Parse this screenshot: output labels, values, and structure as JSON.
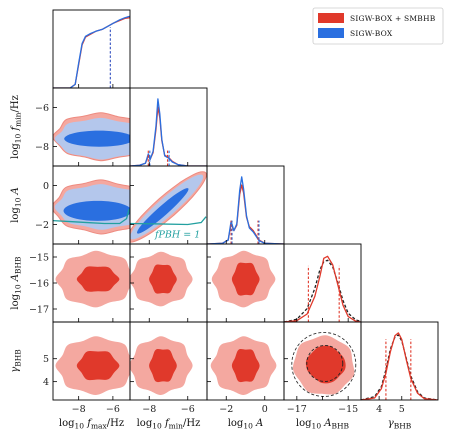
{
  "chart_data": {
    "type": "corner",
    "series": [
      {
        "name": "SIGW-BOX + SMBHB",
        "color": "#e0392b",
        "light": "#f4a8a0"
      },
      {
        "name": "SIGW-BOX",
        "color": "#2a6fe0",
        "light": "#b4c7ec"
      }
    ],
    "parameters": [
      {
        "key": "fmax",
        "xlabel": "log10 fmax/Hz",
        "ylabel": "",
        "range": [
          -9.5,
          -5
        ],
        "ticks": [
          -8,
          -6
        ]
      },
      {
        "key": "fmin",
        "xlabel": "log10 fmin/Hz",
        "ylabel": "log10 fmin/Hz",
        "range": [
          -9,
          -5
        ],
        "ticks": [
          -8,
          -6
        ]
      },
      {
        "key": "A",
        "xlabel": "log10 A",
        "ylabel": "log10 A",
        "range": [
          -3,
          1
        ],
        "ticks": [
          -2,
          0
        ]
      },
      {
        "key": "ABHB",
        "xlabel": "log10 ABHB",
        "ylabel": "log10 ABHB",
        "range": [
          -17.5,
          -14.5
        ],
        "ticks": [
          -17,
          -16,
          -15
        ]
      },
      {
        "key": "gBHB",
        "xlabel": "γBHB",
        "ylabel": "γBHB",
        "range": [
          3.2,
          6.6
        ],
        "ticks": [
          4,
          5
        ]
      }
    ],
    "tick_labels": {
      "fmax_x": [
        "−8",
        "−6"
      ],
      "fmin_x": [
        "−8",
        "−6"
      ],
      "A_x": [
        "−2",
        "0"
      ],
      "ABHB_x": [
        "−17",
        "−15"
      ],
      "gBHB_x": [
        "4",
        "5"
      ],
      "fmin_y": [
        "−6",
        "−8"
      ],
      "A_y": [
        "0",
        "−2"
      ],
      "ABHB_y": [
        "−15",
        "−16",
        "−17"
      ],
      "gBHB_y": [
        "5",
        "4"
      ]
    },
    "annotation": {
      "text": "fPBH = 1",
      "x": -6.5,
      "y": -2.2
    },
    "pbh_line": [
      [
        -9.5,
        -1.8
      ],
      [
        -8.5,
        -1.85
      ],
      [
        -7.5,
        -1.9
      ],
      [
        -6.5,
        -1.95
      ],
      [
        -5.6,
        -1.95
      ],
      [
        -5.2,
        -1.7
      ],
      [
        -5.05,
        -1.2
      ]
    ],
    "marginals": {
      "fmax": {
        "x": [
          -9.5,
          -8.5,
          -8.2,
          -8.0,
          -7.8,
          -7.6,
          -7.3,
          -7.0,
          -6.6,
          -6.3,
          -6.0,
          -5.6,
          -5.3,
          -5.0
        ],
        "blue": [
          0,
          0,
          0.05,
          0.35,
          0.62,
          0.72,
          0.76,
          0.79,
          0.82,
          0.86,
          0.9,
          0.95,
          0.98,
          1.0
        ],
        "red": [
          0,
          0,
          0.05,
          0.33,
          0.6,
          0.71,
          0.75,
          0.79,
          0.82,
          0.86,
          0.9,
          0.94,
          0.97,
          0.98
        ],
        "quantile": -6.15
      },
      "fmin": {
        "x": [
          -9.0,
          -8.5,
          -8.2,
          -8.05,
          -7.95,
          -7.8,
          -7.65,
          -7.55,
          -7.45,
          -7.35,
          -7.2,
          -7.0,
          -6.8,
          -6.5,
          -6.0,
          -5.0
        ],
        "blue": [
          0,
          0.01,
          0.04,
          0.18,
          0.1,
          0.22,
          0.6,
          1.0,
          0.78,
          0.4,
          0.15,
          0.12,
          0.06,
          0.02,
          0,
          0
        ],
        "red": [
          0,
          0.01,
          0.04,
          0.15,
          0.1,
          0.2,
          0.55,
          0.88,
          0.72,
          0.38,
          0.16,
          0.13,
          0.07,
          0.02,
          0,
          0
        ],
        "quantiles": [
          -8.05,
          -7.05
        ]
      },
      "A": {
        "x": [
          -3,
          -2.2,
          -1.9,
          -1.75,
          -1.6,
          -1.45,
          -1.3,
          -1.2,
          -1.1,
          -0.95,
          -0.8,
          -0.6,
          -0.3,
          0,
          1
        ],
        "blue": [
          0,
          0.01,
          0.06,
          0.34,
          0.2,
          0.3,
          0.8,
          1.0,
          0.82,
          0.42,
          0.24,
          0.18,
          0.05,
          0.01,
          0
        ],
        "red": [
          0,
          0.01,
          0.06,
          0.3,
          0.2,
          0.28,
          0.74,
          0.88,
          0.76,
          0.4,
          0.26,
          0.2,
          0.06,
          0.01,
          0
        ],
        "quantiles": [
          -1.75,
          -0.35
        ]
      },
      "ABHB": {
        "x": [
          -17.5,
          -17.0,
          -16.6,
          -16.3,
          -16.1,
          -15.95,
          -15.8,
          -15.6,
          -15.4,
          -15.2,
          -15.0,
          -14.7,
          -14.5
        ],
        "red": [
          0,
          0.02,
          0.12,
          0.38,
          0.68,
          0.95,
          0.98,
          0.85,
          0.55,
          0.25,
          0.08,
          0.01,
          0
        ],
        "prior": [
          0,
          0.04,
          0.2,
          0.5,
          0.78,
          0.9,
          0.92,
          0.82,
          0.58,
          0.32,
          0.13,
          0.03,
          0.01
        ],
        "quantiles": [
          -16.55,
          -15.35
        ]
      },
      "gBHB": {
        "x": [
          3.2,
          3.8,
          4.1,
          4.3,
          4.5,
          4.7,
          4.85,
          5.0,
          5.2,
          5.4,
          5.7,
          6.0,
          6.6
        ],
        "red": [
          0,
          0.03,
          0.17,
          0.4,
          0.72,
          0.96,
          1.0,
          0.9,
          0.6,
          0.32,
          0.1,
          0.02,
          0
        ],
        "prior": [
          0,
          0.05,
          0.2,
          0.45,
          0.76,
          0.94,
          0.97,
          0.88,
          0.62,
          0.36,
          0.12,
          0.03,
          0
        ],
        "quantiles": [
          4.3,
          5.4
        ]
      }
    }
  }
}
